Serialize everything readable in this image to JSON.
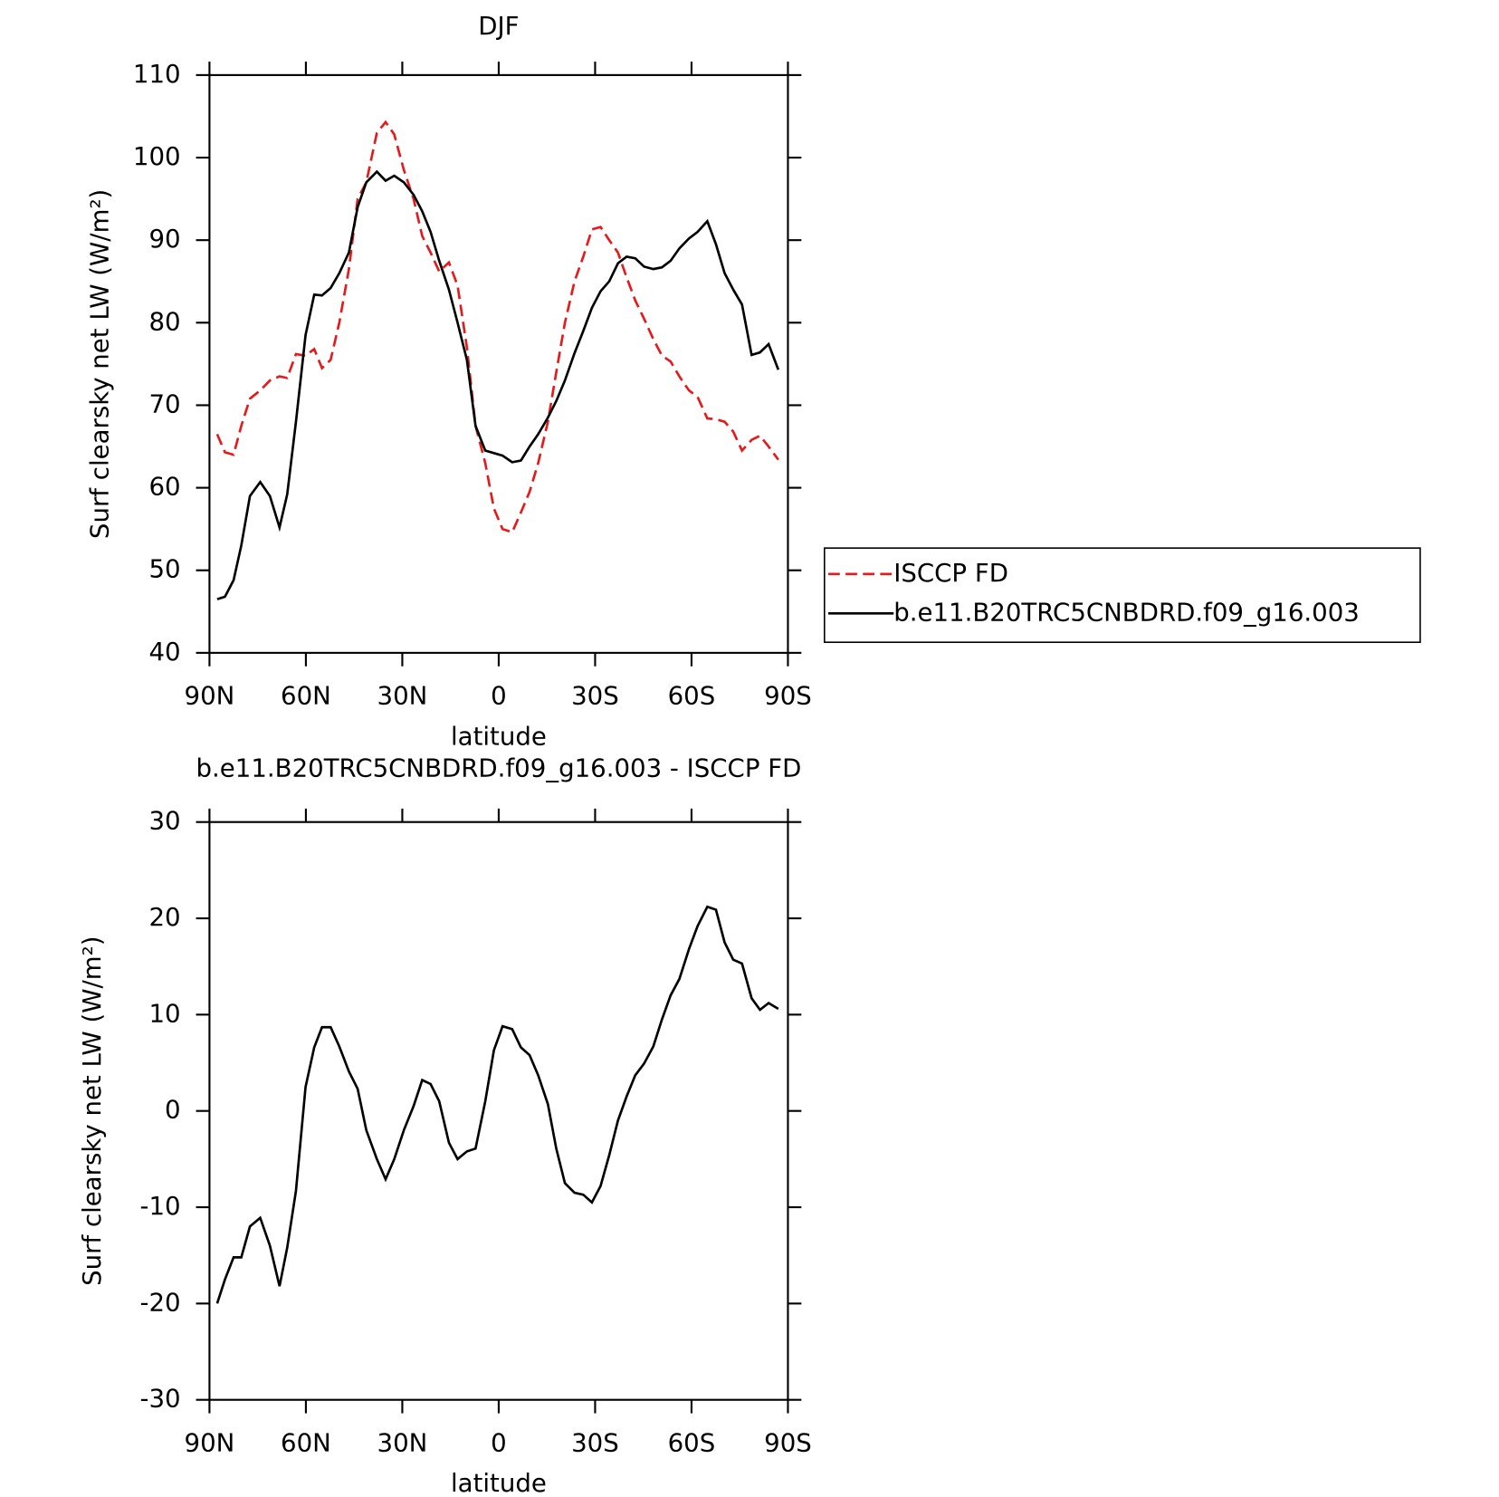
{
  "chart_data": [
    {
      "type": "line",
      "title": "DJF",
      "xlabel": "latitude",
      "ylabel": "Surf clearsky net LW (W/m²)",
      "x": [
        87.6,
        85.2,
        82.5,
        80.1,
        77.4,
        74.2,
        71.2,
        68.2,
        65.8,
        63.1,
        60.1,
        57.4,
        55,
        52.3,
        49.6,
        46.6,
        43.9,
        41.2,
        37.9,
        35.2,
        32.5,
        29.5,
        26.5,
        23.8,
        21.2,
        18.5,
        15.5,
        12.8,
        9.9,
        7.2,
        4.2,
        1.5,
        -1.2,
        -4.2,
        -6.9,
        -9.6,
        -12.3,
        -15.3,
        -17.9,
        -20.6,
        -23.6,
        -26.3,
        -29,
        -31.7,
        -34.4,
        -37.1,
        -39.8,
        -42.5,
        -45.2,
        -48.1,
        -50.8,
        -53.5,
        -56.2,
        -59.2,
        -61.9,
        -64.9,
        -67.6,
        -70.3,
        -73,
        -75.7,
        -78.7,
        -81.3,
        -84,
        -87
      ],
      "xlim": [
        90,
        -90
      ],
      "xticks": [
        {
          "value": 90,
          "label": "90N"
        },
        {
          "value": 60,
          "label": "60N"
        },
        {
          "value": 30,
          "label": "30N"
        },
        0,
        {
          "value": -30,
          "label": "30S"
        },
        {
          "value": -60,
          "label": "60S"
        },
        {
          "value": -90,
          "label": "90S"
        }
      ],
      "ylim": [
        40,
        110
      ],
      "yticks": [
        40,
        50,
        60,
        70,
        80,
        90,
        100,
        110
      ],
      "legend": "right",
      "series": [
        {
          "name": "ISCCP FD",
          "color": "#e41a1c",
          "dash": "dashed",
          "values": [
            66.5,
            64.3,
            64,
            67.5,
            70.8,
            71.8,
            73,
            73.5,
            73.3,
            76.2,
            76,
            76.8,
            74.5,
            75.5,
            80,
            86.5,
            95,
            97,
            103,
            104.3,
            102.8,
            98.5,
            95,
            90.5,
            88.5,
            86.2,
            87.3,
            84.5,
            77,
            67.5,
            63,
            57.5,
            55,
            54.6,
            57,
            59.5,
            63,
            68,
            74,
            80,
            85,
            88,
            91.3,
            91.6,
            90,
            88.5,
            85.5,
            82.7,
            80.5,
            78,
            76,
            75.3,
            73.5,
            71.8,
            71,
            68.4,
            68.3,
            68,
            66.8,
            64.5,
            65.8,
            66.3,
            65,
            63.4
          ]
        },
        {
          "name": "b.e11.B20TRC5CNBDRD.f09_g16.003",
          "color": "#000000",
          "dash": "solid",
          "values": [
            46.5,
            46.8,
            48.8,
            53,
            59,
            60.7,
            59,
            55.2,
            59.2,
            68,
            78.5,
            83.4,
            83.3,
            84.2,
            86,
            88.5,
            94,
            97,
            98.3,
            97.2,
            97.8,
            97,
            95.5,
            93.5,
            91,
            87.5,
            84,
            80,
            75.5,
            67.5,
            64.5,
            64.2,
            63.9,
            63.1,
            63.3,
            65,
            66.5,
            68.5,
            70.5,
            73,
            76.3,
            79,
            81.8,
            83.8,
            85,
            87.2,
            88,
            87.8,
            86.8,
            86.5,
            86.7,
            87.5,
            89,
            90.2,
            91,
            92.3,
            89.5,
            86,
            84,
            82.2,
            76.1,
            76.4,
            77.4,
            74.3
          ]
        }
      ]
    },
    {
      "type": "line",
      "title": "b.e11.B20TRC5CNBDRD.f09_g16.003 - ISCCP FD",
      "xlabel": "latitude",
      "ylabel": "Surf clearsky net LW (W/m²)",
      "x": [
        87.6,
        85.2,
        82.5,
        80.1,
        77.4,
        74.2,
        71.2,
        68.2,
        65.8,
        63.1,
        60.1,
        57.4,
        55,
        52.3,
        49.6,
        46.6,
        43.9,
        41.2,
        37.9,
        35.2,
        32.5,
        29.5,
        26.5,
        23.8,
        21.2,
        18.5,
        15.5,
        12.8,
        9.9,
        7.2,
        4.2,
        1.5,
        -1.2,
        -4.2,
        -6.9,
        -9.6,
        -12.3,
        -15.3,
        -17.9,
        -20.6,
        -23.6,
        -26.3,
        -29,
        -31.7,
        -34.4,
        -37.1,
        -39.8,
        -42.5,
        -45.2,
        -48.1,
        -50.8,
        -53.5,
        -56.2,
        -59.2,
        -61.9,
        -64.9,
        -67.6,
        -70.3,
        -73,
        -75.7,
        -78.7,
        -81.3,
        -84,
        -87
      ],
      "xlim": [
        90,
        -90
      ],
      "xticks": [
        {
          "value": 90,
          "label": "90N"
        },
        {
          "value": 60,
          "label": "60N"
        },
        {
          "value": 30,
          "label": "30N"
        },
        0,
        {
          "value": -30,
          "label": "30S"
        },
        {
          "value": -60,
          "label": "60S"
        },
        {
          "value": -90,
          "label": "90S"
        }
      ],
      "ylim": [
        -30,
        30
      ],
      "yticks": [
        -30,
        -20,
        -10,
        0,
        10,
        20,
        30
      ],
      "series": [
        {
          "color": "#000000",
          "dash": "solid",
          "values": [
            -20,
            -17.5,
            -15.2,
            -15.2,
            -12,
            -11.1,
            -14,
            -18.2,
            -14.2,
            -8.3,
            2.5,
            6.6,
            8.7,
            8.7,
            6.7,
            4.1,
            2.3,
            -2,
            -5,
            -7.1,
            -5,
            -2,
            0.5,
            3.2,
            2.8,
            1,
            -3.3,
            -5,
            -4.2,
            -3.9,
            1,
            6.3,
            8.8,
            8.5,
            6.6,
            5.8,
            3.7,
            0.7,
            -3.9,
            -7.5,
            -8.5,
            -8.7,
            -9.5,
            -7.8,
            -4.6,
            -1,
            1.5,
            3.7,
            4.9,
            6.7,
            9.5,
            12,
            13.7,
            16.8,
            19.2,
            21.2,
            20.9,
            17.5,
            15.7,
            15.3,
            11.7,
            10.5,
            11.2,
            10.6
          ]
        }
      ]
    }
  ]
}
